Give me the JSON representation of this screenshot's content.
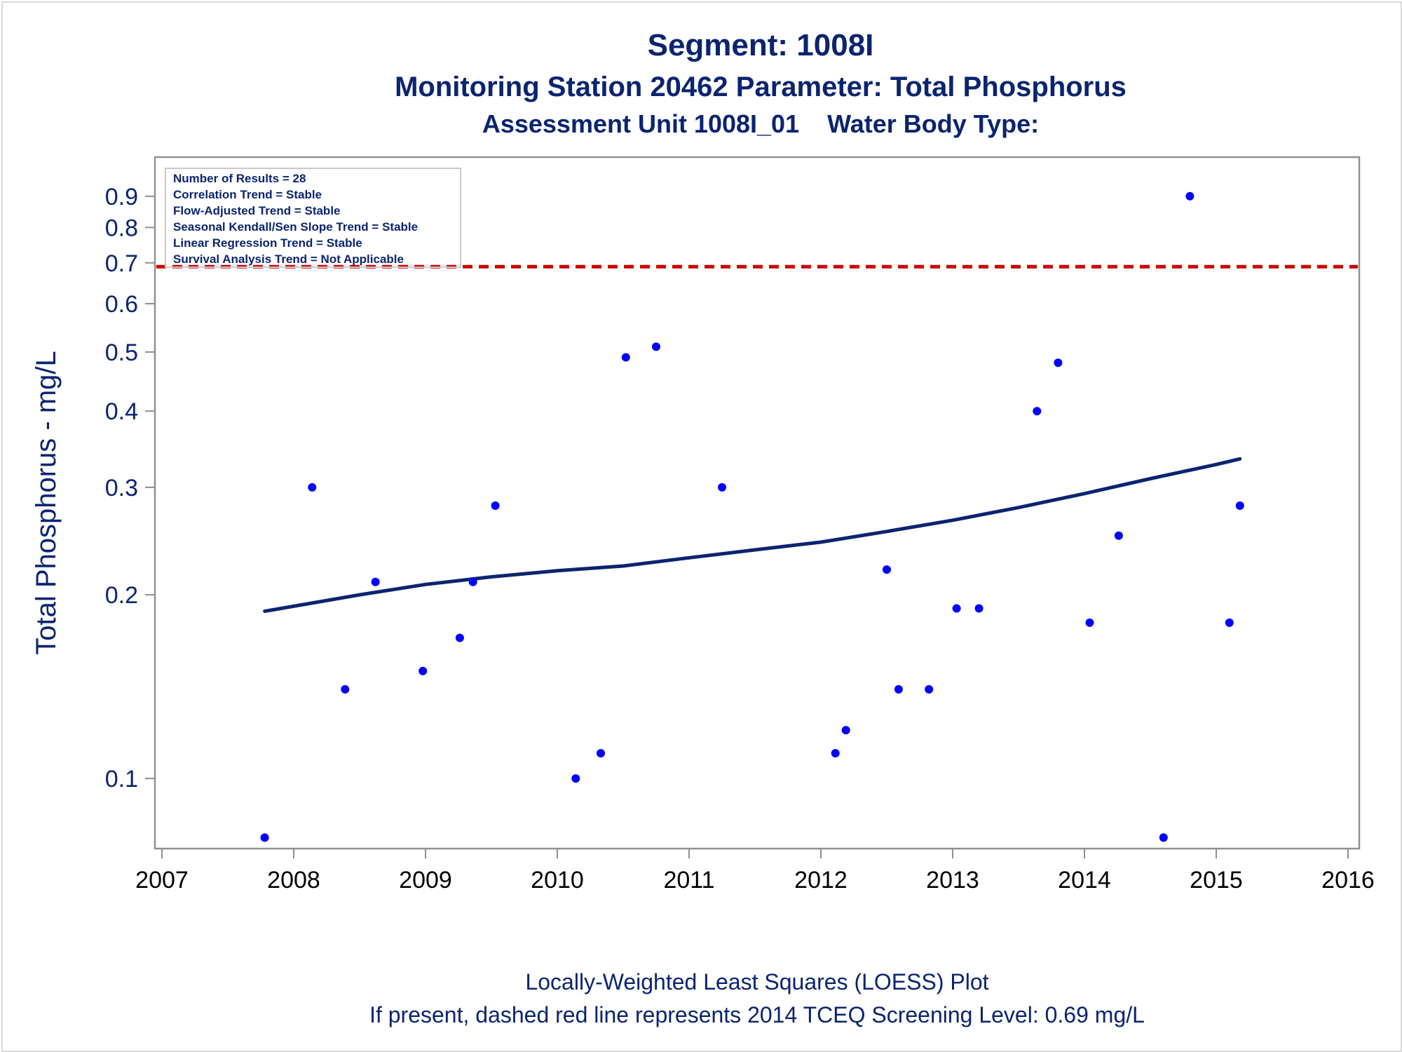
{
  "chart_data": {
    "type": "scatter",
    "title": "Segment: 1008I",
    "subtitle": "Monitoring Station 20462 Parameter: Total Phosphorus",
    "subtitle2": "Assessment Unit 1008I_01    Water Body Type:",
    "xlabel": "",
    "ylabel": "Total Phosphorus - mg/L",
    "yscale": "log",
    "xlim": [
      2007,
      2016
    ],
    "ylim": [
      0.075,
      0.93
    ],
    "x_ticks": [
      "2007",
      "2008",
      "2009",
      "2010",
      "2011",
      "2012",
      "2013",
      "2014",
      "2015",
      "2016"
    ],
    "y_ticks": [
      "0.1",
      "0.2",
      "0.3",
      "0.4",
      "0.5",
      "0.6",
      "0.7",
      "0.8",
      "0.9"
    ],
    "grid": false,
    "stats_box": [
      "Number of Results = 28",
      "Correlation Trend = Stable",
      "Flow-Adjusted Trend = Stable",
      "Seasonal Kendall/Sen Slope Trend = Stable",
      "Linear Regression Trend = Stable",
      "Survival Analysis Trend = Not Applicable"
    ],
    "points": [
      {
        "x": 2007.78,
        "y": 0.08
      },
      {
        "x": 2008.14,
        "y": 0.3
      },
      {
        "x": 2008.39,
        "y": 0.14
      },
      {
        "x": 2008.62,
        "y": 0.21
      },
      {
        "x": 2008.98,
        "y": 0.15
      },
      {
        "x": 2009.26,
        "y": 0.17
      },
      {
        "x": 2009.36,
        "y": 0.21
      },
      {
        "x": 2009.53,
        "y": 0.28
      },
      {
        "x": 2010.14,
        "y": 0.1
      },
      {
        "x": 2010.33,
        "y": 0.11
      },
      {
        "x": 2010.52,
        "y": 0.49
      },
      {
        "x": 2010.75,
        "y": 0.51
      },
      {
        "x": 2011.25,
        "y": 0.3
      },
      {
        "x": 2012.11,
        "y": 0.11
      },
      {
        "x": 2012.19,
        "y": 0.12
      },
      {
        "x": 2012.5,
        "y": 0.22
      },
      {
        "x": 2012.59,
        "y": 0.14
      },
      {
        "x": 2012.82,
        "y": 0.14
      },
      {
        "x": 2013.03,
        "y": 0.19
      },
      {
        "x": 2013.2,
        "y": 0.19
      },
      {
        "x": 2013.64,
        "y": 0.4
      },
      {
        "x": 2013.8,
        "y": 0.48
      },
      {
        "x": 2014.04,
        "y": 0.18
      },
      {
        "x": 2014.26,
        "y": 0.25
      },
      {
        "x": 2014.6,
        "y": 0.08
      },
      {
        "x": 2014.8,
        "y": 0.9
      },
      {
        "x": 2015.1,
        "y": 0.18
      },
      {
        "x": 2015.18,
        "y": 0.28
      }
    ],
    "loess": {
      "x": [
        2007.78,
        2008.5,
        2009.0,
        2009.5,
        2010.0,
        2010.5,
        2011.0,
        2011.5,
        2012.0,
        2012.5,
        2013.0,
        2013.5,
        2014.0,
        2014.5,
        2015.0,
        2015.18
      ],
      "y": [
        0.188,
        0.2,
        0.208,
        0.214,
        0.219,
        0.223,
        0.23,
        0.237,
        0.244,
        0.254,
        0.265,
        0.278,
        0.293,
        0.31,
        0.327,
        0.334
      ],
      "color": "#0b2470"
    },
    "reference_line": {
      "y": 0.69,
      "color": "#cc0000",
      "style": "dashed"
    },
    "point_color": "#0000ff",
    "footer": [
      "Locally-Weighted Least Squares (LOESS) Plot",
      "If present, dashed red line represents 2014 TCEQ Screening Level: 0.69 mg/L"
    ]
  }
}
